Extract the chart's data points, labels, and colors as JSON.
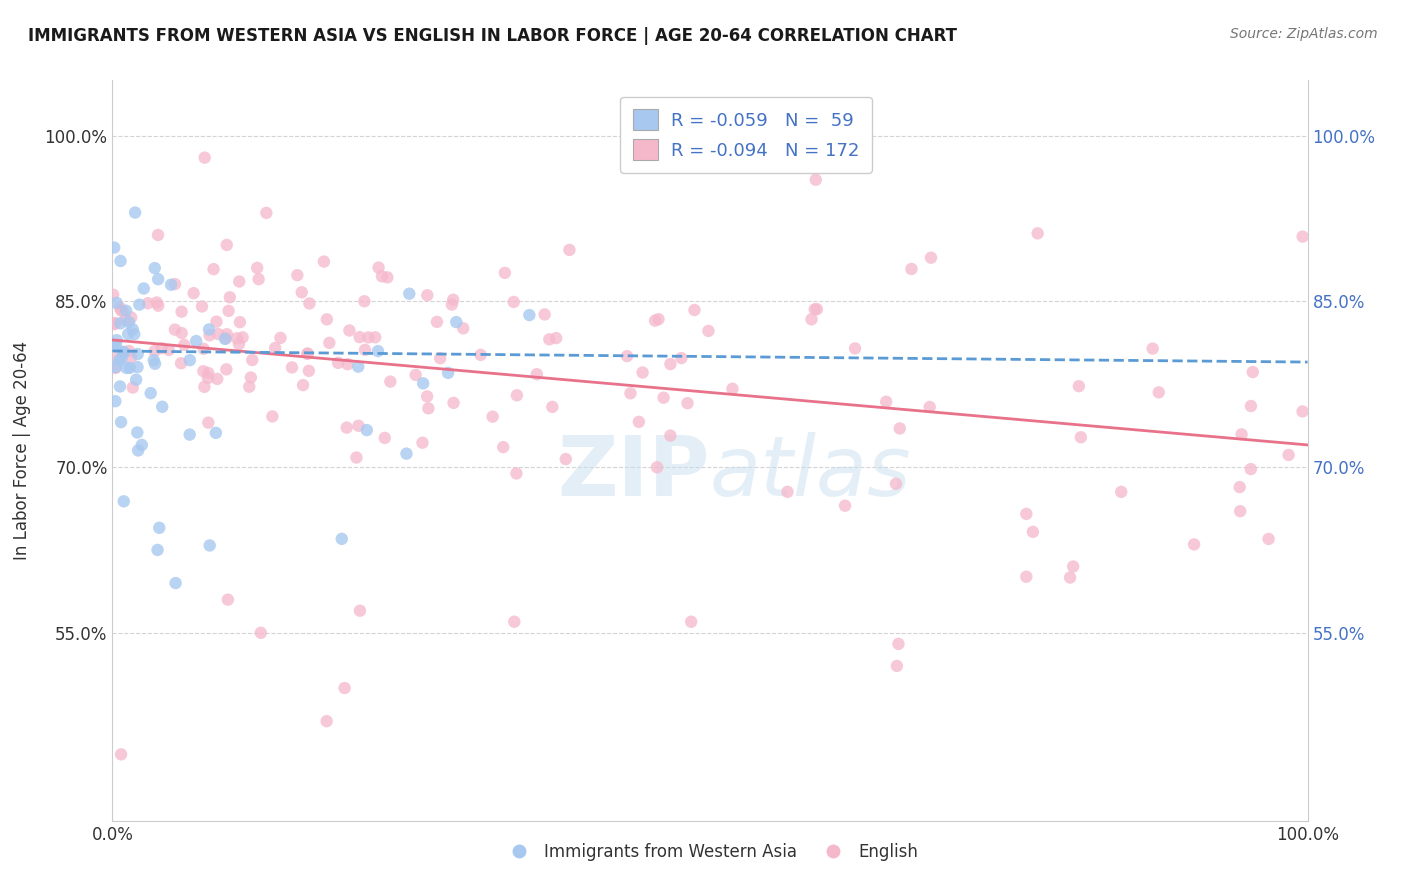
{
  "title": "IMMIGRANTS FROM WESTERN ASIA VS ENGLISH IN LABOR FORCE | AGE 20-64 CORRELATION CHART",
  "source": "Source: ZipAtlas.com",
  "ylabel": "In Labor Force | Age 20-64",
  "xlim": [
    0.0,
    1.0
  ],
  "ylim": [
    0.38,
    1.05
  ],
  "ytick_labels": [
    "55.0%",
    "70.0%",
    "85.0%",
    "100.0%"
  ],
  "ytick_values": [
    0.55,
    0.7,
    0.85,
    1.0
  ],
  "right_ytick_labels": [
    "100.0%",
    "85.0%",
    "70.0%",
    "55.0%"
  ],
  "right_ytick_values": [
    1.0,
    0.85,
    0.7,
    0.55
  ],
  "xtick_labels": [
    "0.0%",
    "100.0%"
  ],
  "xtick_values": [
    0.0,
    1.0
  ],
  "blue_color": "#a8c8f0",
  "pink_color": "#f5b8cb",
  "blue_line_color": "#5b9bd5",
  "pink_line_color": "#e8728a",
  "R_blue": -0.059,
  "N_blue": 59,
  "R_pink": -0.094,
  "N_pink": 172,
  "legend_label_blue": "Immigrants from Western Asia",
  "legend_label_pink": "English",
  "watermark": "ZIPatlas",
  "legend_R_color": "#4472c4",
  "background_color": "#ffffff",
  "grid_color": "#d0d0d0",
  "title_fontsize": 12,
  "marker_size": 80,
  "blue_trend_start": 0.805,
  "blue_trend_end": 0.795,
  "pink_trend_start": 0.815,
  "pink_trend_end": 0.72
}
